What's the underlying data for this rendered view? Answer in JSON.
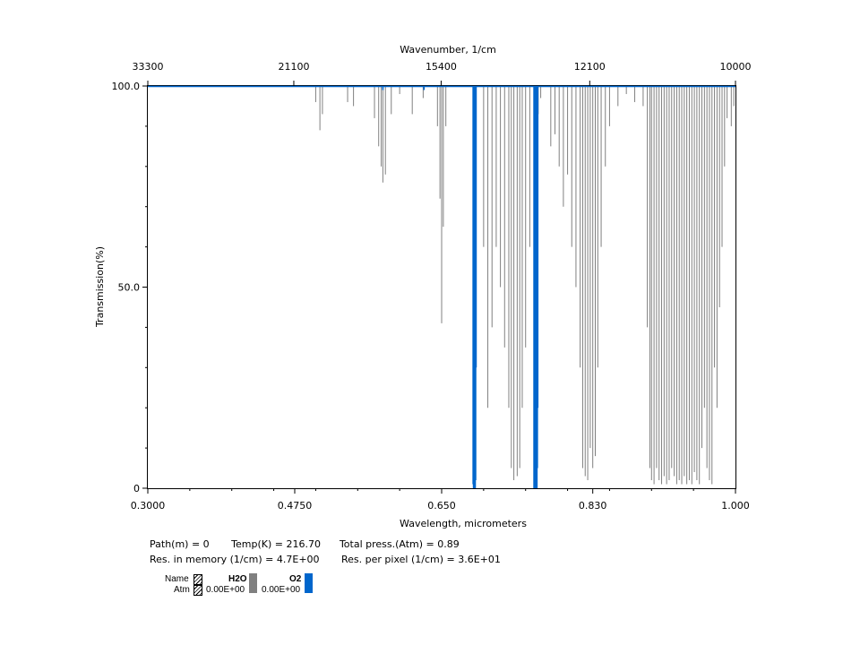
{
  "chart_data": {
    "type": "line",
    "xlabel": "Wavelength, micrometers",
    "ylabel": "Transmission(%)",
    "top_axis_label": "Wavenumber, 1/cm",
    "xlim": [
      0.3,
      1.0
    ],
    "ylim": [
      0,
      100
    ],
    "x_ticks": [
      "0.3000",
      "0.4750",
      "0.650",
      "0.830",
      "1.000"
    ],
    "y_ticks": [
      "0",
      "50.0",
      "100.0"
    ],
    "top_ticks": [
      {
        "label": "33300",
        "wavelength": 0.3
      },
      {
        "label": "21100",
        "wavelength": 0.4739
      },
      {
        "label": "15400",
        "wavelength": 0.6494
      },
      {
        "label": "12100",
        "wavelength": 0.8264
      },
      {
        "label": "10000",
        "wavelength": 1.0
      }
    ],
    "grid": false,
    "series": [
      {
        "name": "H2O",
        "color": "#808080",
        "bands": [
          {
            "x": 0.505,
            "min": 89
          },
          {
            "x": 0.508,
            "min": 93
          },
          {
            "x": 0.5,
            "min": 96
          },
          {
            "x": 0.538,
            "min": 96
          },
          {
            "x": 0.545,
            "min": 95
          },
          {
            "x": 0.57,
            "min": 92
          },
          {
            "x": 0.575,
            "min": 85
          },
          {
            "x": 0.578,
            "min": 80
          },
          {
            "x": 0.58,
            "min": 76
          },
          {
            "x": 0.583,
            "min": 78
          },
          {
            "x": 0.59,
            "min": 93
          },
          {
            "x": 0.6,
            "min": 98
          },
          {
            "x": 0.615,
            "min": 93
          },
          {
            "x": 0.628,
            "min": 97
          },
          {
            "x": 0.645,
            "min": 90
          },
          {
            "x": 0.648,
            "min": 72
          },
          {
            "x": 0.65,
            "min": 41
          },
          {
            "x": 0.652,
            "min": 65
          },
          {
            "x": 0.655,
            "min": 90
          },
          {
            "x": 0.69,
            "min": 97
          },
          {
            "x": 0.7,
            "min": 60
          },
          {
            "x": 0.705,
            "min": 20
          },
          {
            "x": 0.71,
            "min": 40
          },
          {
            "x": 0.715,
            "min": 60
          },
          {
            "x": 0.72,
            "min": 50
          },
          {
            "x": 0.725,
            "min": 35
          },
          {
            "x": 0.73,
            "min": 20
          },
          {
            "x": 0.733,
            "min": 5
          },
          {
            "x": 0.736,
            "min": 2
          },
          {
            "x": 0.74,
            "min": 3
          },
          {
            "x": 0.743,
            "min": 5
          },
          {
            "x": 0.746,
            "min": 20
          },
          {
            "x": 0.75,
            "min": 35
          },
          {
            "x": 0.755,
            "min": 60
          },
          {
            "x": 0.76,
            "min": 80
          },
          {
            "x": 0.765,
            "min": 93
          },
          {
            "x": 0.768,
            "min": 97
          },
          {
            "x": 0.78,
            "min": 85
          },
          {
            "x": 0.785,
            "min": 88
          },
          {
            "x": 0.79,
            "min": 80
          },
          {
            "x": 0.795,
            "min": 70
          },
          {
            "x": 0.8,
            "min": 78
          },
          {
            "x": 0.805,
            "min": 60
          },
          {
            "x": 0.81,
            "min": 50
          },
          {
            "x": 0.815,
            "min": 30
          },
          {
            "x": 0.818,
            "min": 5
          },
          {
            "x": 0.821,
            "min": 3
          },
          {
            "x": 0.824,
            "min": 2
          },
          {
            "x": 0.827,
            "min": 10
          },
          {
            "x": 0.83,
            "min": 5
          },
          {
            "x": 0.833,
            "min": 8
          },
          {
            "x": 0.836,
            "min": 30
          },
          {
            "x": 0.84,
            "min": 60
          },
          {
            "x": 0.845,
            "min": 80
          },
          {
            "x": 0.85,
            "min": 90
          },
          {
            "x": 0.86,
            "min": 95
          },
          {
            "x": 0.87,
            "min": 98
          },
          {
            "x": 0.88,
            "min": 96
          },
          {
            "x": 0.89,
            "min": 95
          },
          {
            "x": 0.895,
            "min": 40
          },
          {
            "x": 0.898,
            "min": 5
          },
          {
            "x": 0.9,
            "min": 2
          },
          {
            "x": 0.903,
            "min": 1
          },
          {
            "x": 0.906,
            "min": 5
          },
          {
            "x": 0.909,
            "min": 2
          },
          {
            "x": 0.912,
            "min": 1
          },
          {
            "x": 0.915,
            "min": 3
          },
          {
            "x": 0.918,
            "min": 1
          },
          {
            "x": 0.921,
            "min": 2
          },
          {
            "x": 0.924,
            "min": 5
          },
          {
            "x": 0.927,
            "min": 3
          },
          {
            "x": 0.93,
            "min": 1
          },
          {
            "x": 0.933,
            "min": 2
          },
          {
            "x": 0.936,
            "min": 1
          },
          {
            "x": 0.939,
            "min": 3
          },
          {
            "x": 0.942,
            "min": 1
          },
          {
            "x": 0.945,
            "min": 2
          },
          {
            "x": 0.948,
            "min": 1
          },
          {
            "x": 0.951,
            "min": 4
          },
          {
            "x": 0.954,
            "min": 2
          },
          {
            "x": 0.957,
            "min": 1
          },
          {
            "x": 0.96,
            "min": 10
          },
          {
            "x": 0.963,
            "min": 20
          },
          {
            "x": 0.966,
            "min": 5
          },
          {
            "x": 0.969,
            "min": 2
          },
          {
            "x": 0.972,
            "min": 1
          },
          {
            "x": 0.975,
            "min": 30
          },
          {
            "x": 0.978,
            "min": 20
          },
          {
            "x": 0.981,
            "min": 45
          },
          {
            "x": 0.984,
            "min": 60
          },
          {
            "x": 0.987,
            "min": 80
          },
          {
            "x": 0.99,
            "min": 92
          },
          {
            "x": 0.995,
            "min": 90
          },
          {
            "x": 0.998,
            "min": 95
          }
        ]
      },
      {
        "name": "O2",
        "color": "#0066cc",
        "bands": [
          {
            "x": 0.6875,
            "min": 1
          },
          {
            "x": 0.688,
            "min": 0
          },
          {
            "x": 0.6885,
            "min": 0
          },
          {
            "x": 0.689,
            "min": 1
          },
          {
            "x": 0.6895,
            "min": 0
          },
          {
            "x": 0.69,
            "min": 0
          },
          {
            "x": 0.6905,
            "min": 2
          },
          {
            "x": 0.691,
            "min": 30
          },
          {
            "x": 0.76,
            "min": 0
          },
          {
            "x": 0.7605,
            "min": 0
          },
          {
            "x": 0.761,
            "min": 1
          },
          {
            "x": 0.7615,
            "min": 0
          },
          {
            "x": 0.762,
            "min": 0
          },
          {
            "x": 0.7625,
            "min": 0
          },
          {
            "x": 0.763,
            "min": 1
          },
          {
            "x": 0.7635,
            "min": 0
          },
          {
            "x": 0.764,
            "min": 5
          },
          {
            "x": 0.7645,
            "min": 20
          },
          {
            "x": 0.629,
            "min": 99
          },
          {
            "x": 0.58,
            "min": 99
          }
        ]
      }
    ]
  },
  "info": {
    "line1": "Path(m) = 0       Temp(K) = 216.70      Total press.(Atm) = 0.89",
    "line2": "Res. in memory (1/cm) = 4.7E+00       Res. per pixel (1/cm) = 3.6E+01"
  },
  "legend": {
    "name_label": "Name",
    "atm_label": "Atm",
    "items": [
      {
        "name": "H2O",
        "atm": "0.00E+00",
        "color": "#808080"
      },
      {
        "name": "O2",
        "atm": "0.00E+00",
        "color": "#0066cc"
      }
    ]
  }
}
